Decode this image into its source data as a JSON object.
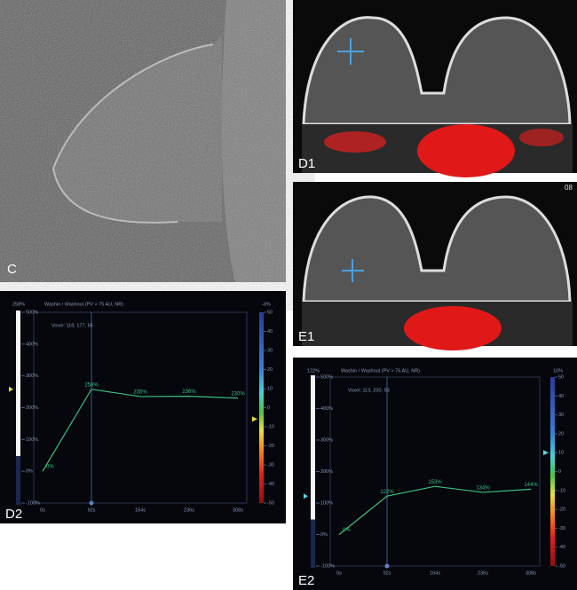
{
  "panels": {
    "c": {
      "label": "C"
    },
    "d1": {
      "label": "D1"
    },
    "e1": {
      "label": "E1",
      "stamp": "08"
    }
  },
  "chart_data": [
    {
      "type": "line",
      "label": "D2",
      "title": "Washin / Washout (PV > 75 AU, NR)",
      "subtitle": "Voxel: 118, 177, 65",
      "categories": [
        "0s",
        "92s",
        "164s",
        "236s",
        "308s"
      ],
      "series": [
        {
          "color": "#3fbf80",
          "values": [
            0,
            258,
            235,
            236,
            230
          ],
          "value_labels": [
            "0%",
            "258%",
            "235%",
            "236%",
            "230%"
          ]
        }
      ],
      "ylim": [
        -100,
        500
      ],
      "yticks": [
        {
          "value": -100,
          "label": "-100%"
        },
        {
          "value": 0,
          "label": "0%"
        },
        {
          "value": 100,
          "label": "100%"
        },
        {
          "value": 200,
          "label": "200%"
        },
        {
          "value": 300,
          "label": "300%"
        },
        {
          "value": 400,
          "label": "400%"
        },
        {
          "value": 500,
          "label": "500%"
        }
      ],
      "y2lim": [
        -50,
        50
      ],
      "y2ticks": [
        50,
        40,
        30,
        20,
        10,
        0,
        -10,
        -20,
        -30,
        -40,
        -50
      ],
      "washin_marker": {
        "value": 258,
        "label": "258%"
      },
      "washout_marker": {
        "value": -6,
        "label": "-6%"
      },
      "marker_color": "#e8d84a"
    },
    {
      "type": "line",
      "label": "E2",
      "title": "Washin / Washout (PV > 75 AU, NR)",
      "subtitle": "Voxel: 113, 230, 53",
      "categories": [
        "0s",
        "92s",
        "164s",
        "236s",
        "308s"
      ],
      "series": [
        {
          "color": "#3fbf80",
          "values": [
            0,
            122,
            153,
            134,
            144
          ],
          "value_labels": [
            "0%",
            "122%",
            "153%",
            "134%",
            "144%"
          ]
        }
      ],
      "ylim": [
        -100,
        500
      ],
      "yticks": [
        {
          "value": -100,
          "label": "-100%"
        },
        {
          "value": 0,
          "label": "0%"
        },
        {
          "value": 100,
          "label": "100%"
        },
        {
          "value": 200,
          "label": "200%"
        },
        {
          "value": 300,
          "label": "300%"
        },
        {
          "value": 400,
          "label": "400%"
        },
        {
          "value": 500,
          "label": "500%"
        }
      ],
      "y2lim": [
        -50,
        50
      ],
      "y2ticks": [
        50,
        40,
        30,
        20,
        10,
        0,
        -10,
        -20,
        -30,
        -40,
        -50
      ],
      "washin_marker": {
        "value": 122,
        "label": "122%"
      },
      "washout_marker": {
        "value": 10,
        "label": "10%"
      },
      "marker_color": "#5fd0e8"
    }
  ]
}
